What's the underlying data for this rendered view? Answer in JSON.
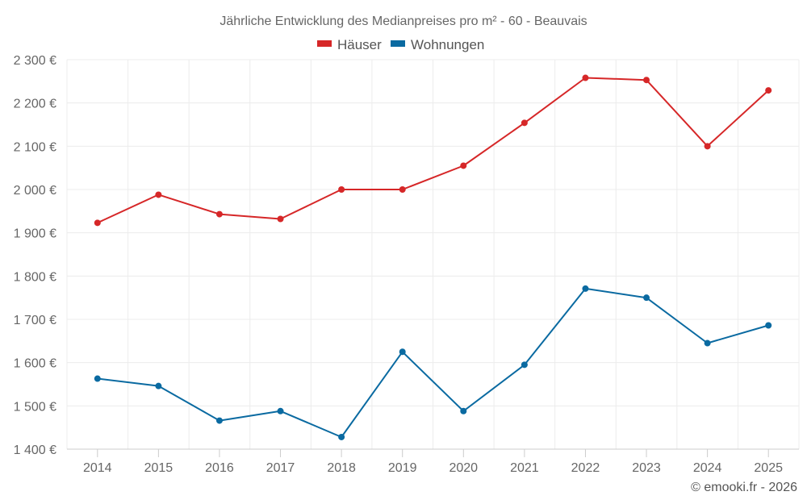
{
  "chart_data": {
    "type": "line",
    "title": "Jährliche Entwicklung des Medianpreises pro m² - 60 - Beauvais",
    "xlabel": "",
    "ylabel": "",
    "categories": [
      "2014",
      "2015",
      "2016",
      "2017",
      "2018",
      "2019",
      "2020",
      "2021",
      "2022",
      "2023",
      "2024",
      "2025"
    ],
    "ylim": [
      1400,
      2300
    ],
    "yticks": [
      1400,
      1500,
      1600,
      1700,
      1800,
      1900,
      2000,
      2100,
      2200,
      2300
    ],
    "ytick_labels": [
      "1 400 €",
      "1 500 €",
      "1 600 €",
      "1 700 €",
      "1 800 €",
      "1 900 €",
      "2 000 €",
      "2 100 €",
      "2 200 €",
      "2 300 €"
    ],
    "grid": true,
    "legend_position": "top-center",
    "series": [
      {
        "name": "Häuser",
        "color": "#d62728",
        "values": [
          1923,
          1988,
          1943,
          1932,
          2000,
          2000,
          2055,
          2154,
          2258,
          2253,
          2100,
          2229
        ]
      },
      {
        "name": "Wohnungen",
        "color": "#0a6aa1",
        "values": [
          1563,
          1546,
          1466,
          1488,
          1428,
          1625,
          1488,
          1595,
          1771,
          1750,
          1645,
          1686
        ]
      }
    ]
  },
  "credit": "© emooki.fr - 2026"
}
